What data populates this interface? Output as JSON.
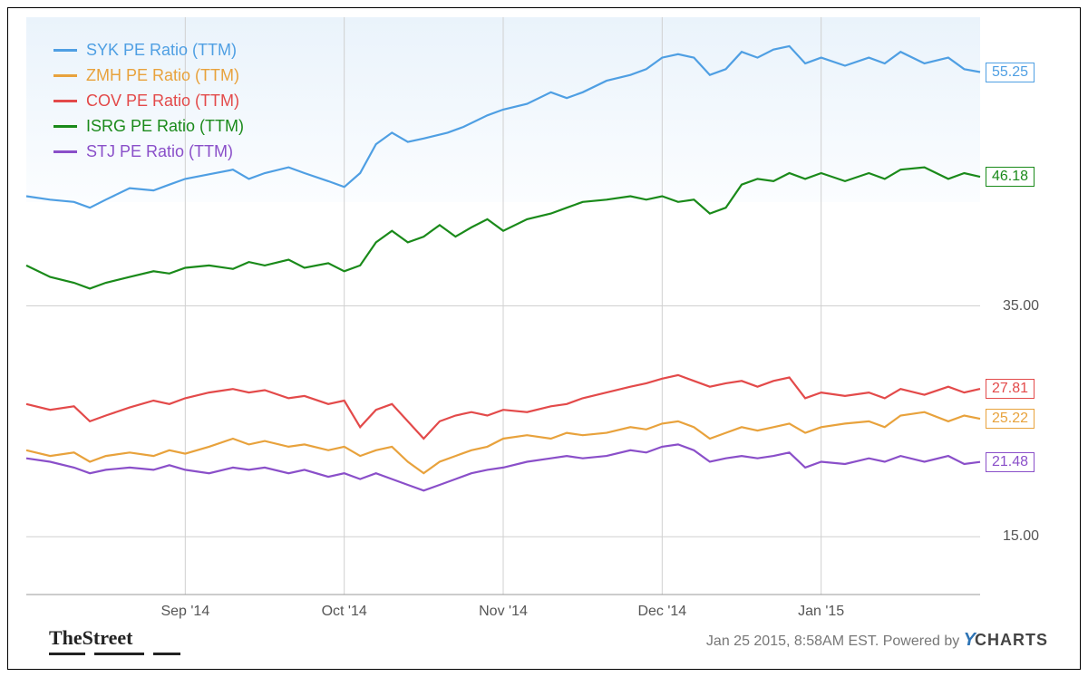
{
  "chart": {
    "type": "line",
    "y_axis": {
      "min": 10,
      "max": 60,
      "ticks": [
        15,
        35
      ],
      "tick_color": "#555",
      "tick_fontsize": 16
    },
    "x_axis": {
      "min": 0,
      "max": 120,
      "ticks": [
        {
          "pos": 20,
          "label": "Sep '14"
        },
        {
          "pos": 40,
          "label": "Oct '14"
        },
        {
          "pos": 60,
          "label": "Nov '14"
        },
        {
          "pos": 80,
          "label": "Dec '14"
        },
        {
          "pos": 100,
          "label": "Jan '15"
        }
      ],
      "tick_color": "#555",
      "tick_fontsize": 16
    },
    "grid_color": "#d0d0d0",
    "background_shade": {
      "from": "#eaf3fb",
      "to": "#fff",
      "y_to": 44
    },
    "line_width": 2.2,
    "series": [
      {
        "id": "syk",
        "label": "SYK PE Ratio (TTM)",
        "color": "#4f9fe3",
        "end_value": 55.25,
        "points": [
          [
            0,
            44.5
          ],
          [
            3,
            44.2
          ],
          [
            6,
            44.0
          ],
          [
            8,
            43.5
          ],
          [
            10,
            44.2
          ],
          [
            13,
            45.2
          ],
          [
            16,
            45.0
          ],
          [
            18,
            45.5
          ],
          [
            20,
            46.0
          ],
          [
            23,
            46.4
          ],
          [
            26,
            46.8
          ],
          [
            28,
            46.0
          ],
          [
            30,
            46.5
          ],
          [
            33,
            47.0
          ],
          [
            35,
            46.5
          ],
          [
            38,
            45.8
          ],
          [
            40,
            45.3
          ],
          [
            42,
            46.5
          ],
          [
            44,
            49.0
          ],
          [
            46,
            50.0
          ],
          [
            48,
            49.2
          ],
          [
            50,
            49.5
          ],
          [
            53,
            50.0
          ],
          [
            55,
            50.5
          ],
          [
            58,
            51.5
          ],
          [
            60,
            52.0
          ],
          [
            63,
            52.5
          ],
          [
            66,
            53.5
          ],
          [
            68,
            53.0
          ],
          [
            70,
            53.5
          ],
          [
            73,
            54.5
          ],
          [
            76,
            55.0
          ],
          [
            78,
            55.5
          ],
          [
            80,
            56.5
          ],
          [
            82,
            56.8
          ],
          [
            84,
            56.5
          ],
          [
            86,
            55.0
          ],
          [
            88,
            55.5
          ],
          [
            90,
            57.0
          ],
          [
            92,
            56.5
          ],
          [
            94,
            57.2
          ],
          [
            96,
            57.5
          ],
          [
            98,
            56.0
          ],
          [
            100,
            56.5
          ],
          [
            103,
            55.8
          ],
          [
            106,
            56.5
          ],
          [
            108,
            56.0
          ],
          [
            110,
            57.0
          ],
          [
            113,
            56.0
          ],
          [
            116,
            56.5
          ],
          [
            118,
            55.5
          ],
          [
            120,
            55.25
          ]
        ]
      },
      {
        "id": "isrg",
        "label": "ISRG PE Ratio (TTM)",
        "color": "#1a8a1a",
        "end_value": 46.18,
        "points": [
          [
            0,
            38.5
          ],
          [
            3,
            37.5
          ],
          [
            6,
            37.0
          ],
          [
            8,
            36.5
          ],
          [
            10,
            37.0
          ],
          [
            13,
            37.5
          ],
          [
            16,
            38.0
          ],
          [
            18,
            37.8
          ],
          [
            20,
            38.3
          ],
          [
            23,
            38.5
          ],
          [
            26,
            38.2
          ],
          [
            28,
            38.8
          ],
          [
            30,
            38.5
          ],
          [
            33,
            39.0
          ],
          [
            35,
            38.3
          ],
          [
            38,
            38.7
          ],
          [
            40,
            38.0
          ],
          [
            42,
            38.5
          ],
          [
            44,
            40.5
          ],
          [
            46,
            41.5
          ],
          [
            48,
            40.5
          ],
          [
            50,
            41.0
          ],
          [
            52,
            42.0
          ],
          [
            54,
            41.0
          ],
          [
            56,
            41.8
          ],
          [
            58,
            42.5
          ],
          [
            60,
            41.5
          ],
          [
            63,
            42.5
          ],
          [
            66,
            43.0
          ],
          [
            68,
            43.5
          ],
          [
            70,
            44.0
          ],
          [
            73,
            44.2
          ],
          [
            76,
            44.5
          ],
          [
            78,
            44.2
          ],
          [
            80,
            44.5
          ],
          [
            82,
            44.0
          ],
          [
            84,
            44.2
          ],
          [
            86,
            43.0
          ],
          [
            88,
            43.5
          ],
          [
            90,
            45.5
          ],
          [
            92,
            46.0
          ],
          [
            94,
            45.8
          ],
          [
            96,
            46.5
          ],
          [
            98,
            46.0
          ],
          [
            100,
            46.5
          ],
          [
            103,
            45.8
          ],
          [
            106,
            46.5
          ],
          [
            108,
            46.0
          ],
          [
            110,
            46.8
          ],
          [
            113,
            47.0
          ],
          [
            116,
            46.0
          ],
          [
            118,
            46.5
          ],
          [
            120,
            46.18
          ]
        ]
      },
      {
        "id": "cov",
        "label": "COV PE Ratio (TTM)",
        "color": "#e34a4a",
        "end_value": 27.81,
        "points": [
          [
            0,
            26.5
          ],
          [
            3,
            26.0
          ],
          [
            6,
            26.3
          ],
          [
            8,
            25.0
          ],
          [
            10,
            25.5
          ],
          [
            13,
            26.2
          ],
          [
            16,
            26.8
          ],
          [
            18,
            26.5
          ],
          [
            20,
            27.0
          ],
          [
            23,
            27.5
          ],
          [
            26,
            27.8
          ],
          [
            28,
            27.5
          ],
          [
            30,
            27.7
          ],
          [
            33,
            27.0
          ],
          [
            35,
            27.2
          ],
          [
            38,
            26.5
          ],
          [
            40,
            26.8
          ],
          [
            42,
            24.5
          ],
          [
            44,
            26.0
          ],
          [
            46,
            26.5
          ],
          [
            48,
            25.0
          ],
          [
            50,
            23.5
          ],
          [
            52,
            25.0
          ],
          [
            54,
            25.5
          ],
          [
            56,
            25.8
          ],
          [
            58,
            25.5
          ],
          [
            60,
            26.0
          ],
          [
            63,
            25.8
          ],
          [
            66,
            26.3
          ],
          [
            68,
            26.5
          ],
          [
            70,
            27.0
          ],
          [
            73,
            27.5
          ],
          [
            76,
            28.0
          ],
          [
            78,
            28.3
          ],
          [
            80,
            28.7
          ],
          [
            82,
            29.0
          ],
          [
            84,
            28.5
          ],
          [
            86,
            28.0
          ],
          [
            88,
            28.3
          ],
          [
            90,
            28.5
          ],
          [
            92,
            28.0
          ],
          [
            94,
            28.5
          ],
          [
            96,
            28.8
          ],
          [
            98,
            27.0
          ],
          [
            100,
            27.5
          ],
          [
            103,
            27.2
          ],
          [
            106,
            27.5
          ],
          [
            108,
            27.0
          ],
          [
            110,
            27.8
          ],
          [
            113,
            27.3
          ],
          [
            116,
            28.0
          ],
          [
            118,
            27.5
          ],
          [
            120,
            27.81
          ]
        ]
      },
      {
        "id": "zmh",
        "label": "ZMH PE Ratio (TTM)",
        "color": "#e8a23c",
        "end_value": 25.22,
        "points": [
          [
            0,
            22.5
          ],
          [
            3,
            22.0
          ],
          [
            6,
            22.3
          ],
          [
            8,
            21.5
          ],
          [
            10,
            22.0
          ],
          [
            13,
            22.3
          ],
          [
            16,
            22.0
          ],
          [
            18,
            22.5
          ],
          [
            20,
            22.2
          ],
          [
            23,
            22.8
          ],
          [
            26,
            23.5
          ],
          [
            28,
            23.0
          ],
          [
            30,
            23.3
          ],
          [
            33,
            22.8
          ],
          [
            35,
            23.0
          ],
          [
            38,
            22.5
          ],
          [
            40,
            22.8
          ],
          [
            42,
            22.0
          ],
          [
            44,
            22.5
          ],
          [
            46,
            22.8
          ],
          [
            48,
            21.5
          ],
          [
            50,
            20.5
          ],
          [
            52,
            21.5
          ],
          [
            54,
            22.0
          ],
          [
            56,
            22.5
          ],
          [
            58,
            22.8
          ],
          [
            60,
            23.5
          ],
          [
            63,
            23.8
          ],
          [
            66,
            23.5
          ],
          [
            68,
            24.0
          ],
          [
            70,
            23.8
          ],
          [
            73,
            24.0
          ],
          [
            76,
            24.5
          ],
          [
            78,
            24.3
          ],
          [
            80,
            24.8
          ],
          [
            82,
            25.0
          ],
          [
            84,
            24.5
          ],
          [
            86,
            23.5
          ],
          [
            88,
            24.0
          ],
          [
            90,
            24.5
          ],
          [
            92,
            24.2
          ],
          [
            94,
            24.5
          ],
          [
            96,
            24.8
          ],
          [
            98,
            24.0
          ],
          [
            100,
            24.5
          ],
          [
            103,
            24.8
          ],
          [
            106,
            25.0
          ],
          [
            108,
            24.5
          ],
          [
            110,
            25.5
          ],
          [
            113,
            25.8
          ],
          [
            116,
            25.0
          ],
          [
            118,
            25.5
          ],
          [
            120,
            25.22
          ]
        ]
      },
      {
        "id": "stj",
        "label": "STJ PE Ratio (TTM)",
        "color": "#8a4fc9",
        "end_value": 21.48,
        "points": [
          [
            0,
            21.8
          ],
          [
            3,
            21.5
          ],
          [
            6,
            21.0
          ],
          [
            8,
            20.5
          ],
          [
            10,
            20.8
          ],
          [
            13,
            21.0
          ],
          [
            16,
            20.8
          ],
          [
            18,
            21.2
          ],
          [
            20,
            20.8
          ],
          [
            23,
            20.5
          ],
          [
            26,
            21.0
          ],
          [
            28,
            20.8
          ],
          [
            30,
            21.0
          ],
          [
            33,
            20.5
          ],
          [
            35,
            20.8
          ],
          [
            38,
            20.2
          ],
          [
            40,
            20.5
          ],
          [
            42,
            20.0
          ],
          [
            44,
            20.5
          ],
          [
            46,
            20.0
          ],
          [
            48,
            19.5
          ],
          [
            50,
            19.0
          ],
          [
            52,
            19.5
          ],
          [
            54,
            20.0
          ],
          [
            56,
            20.5
          ],
          [
            58,
            20.8
          ],
          [
            60,
            21.0
          ],
          [
            63,
            21.5
          ],
          [
            66,
            21.8
          ],
          [
            68,
            22.0
          ],
          [
            70,
            21.8
          ],
          [
            73,
            22.0
          ],
          [
            76,
            22.5
          ],
          [
            78,
            22.3
          ],
          [
            80,
            22.8
          ],
          [
            82,
            23.0
          ],
          [
            84,
            22.5
          ],
          [
            86,
            21.5
          ],
          [
            88,
            21.8
          ],
          [
            90,
            22.0
          ],
          [
            92,
            21.8
          ],
          [
            94,
            22.0
          ],
          [
            96,
            22.3
          ],
          [
            98,
            21.0
          ],
          [
            100,
            21.5
          ],
          [
            103,
            21.3
          ],
          [
            106,
            21.8
          ],
          [
            108,
            21.5
          ],
          [
            110,
            22.0
          ],
          [
            113,
            21.5
          ],
          [
            116,
            22.0
          ],
          [
            118,
            21.3
          ],
          [
            120,
            21.48
          ]
        ]
      }
    ],
    "legend_order": [
      "syk",
      "zmh",
      "cov",
      "isrg",
      "stj"
    ],
    "end_label_order": [
      "syk",
      "isrg",
      "cov",
      "zmh",
      "stj"
    ]
  },
  "footer": {
    "source_logo": "TheStreet",
    "timestamp": "Jan 25 2015, 8:58AM EST.",
    "powered_by_prefix": "Powered by ",
    "powered_by_brand_y": "Y",
    "powered_by_brand_rest": "CHARTS"
  }
}
